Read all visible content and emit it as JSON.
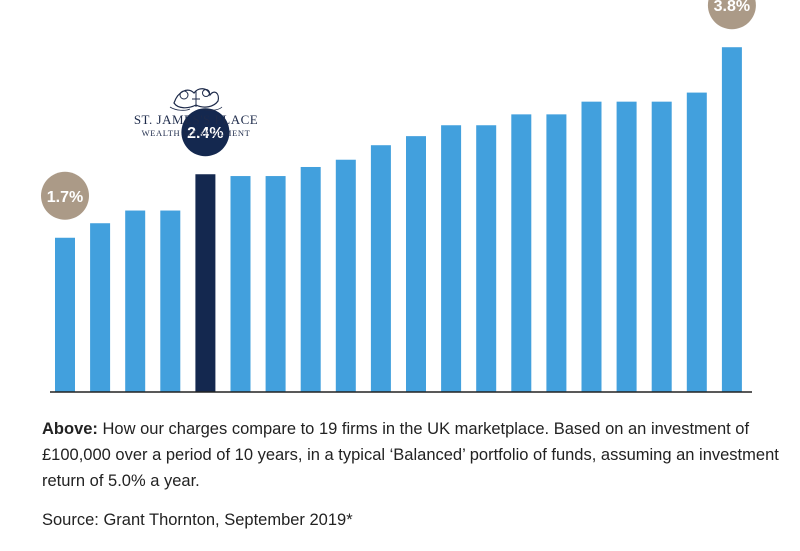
{
  "chart_data": {
    "type": "bar",
    "values": [
      1.7,
      1.86,
      2.0,
      2.0,
      2.4,
      2.38,
      2.38,
      2.48,
      2.56,
      2.72,
      2.82,
      2.94,
      2.94,
      3.06,
      3.06,
      3.2,
      3.2,
      3.2,
      3.3,
      3.8
    ],
    "ylim": [
      0,
      4.1
    ],
    "highlight_index": 4,
    "annotations": [
      {
        "index": 0,
        "label": "1.7%"
      },
      {
        "index": 4,
        "label": "2.4%"
      },
      {
        "index": 19,
        "label": "3.8%"
      }
    ],
    "grid": false,
    "colors": {
      "bar": "#42a0dd",
      "highlight": "#14284f",
      "bubble": "#ab9a87",
      "bubble_dark": "#14284f",
      "axis": "#222222"
    }
  },
  "logo": {
    "name": "ST. JAMES'S PLACE",
    "tagline": "WEALTH MANAGEMENT"
  },
  "caption": {
    "lead": "Above:",
    "text": " How our charges compare to 19 firms in the UK marketplace. Based on an investment of £100,000 over a period of 10 years, in a typical ‘Balanced’ portfolio of funds, assuming an investment return of 5.0% a year."
  },
  "source": "Source: Grant Thornton, September 2019*"
}
